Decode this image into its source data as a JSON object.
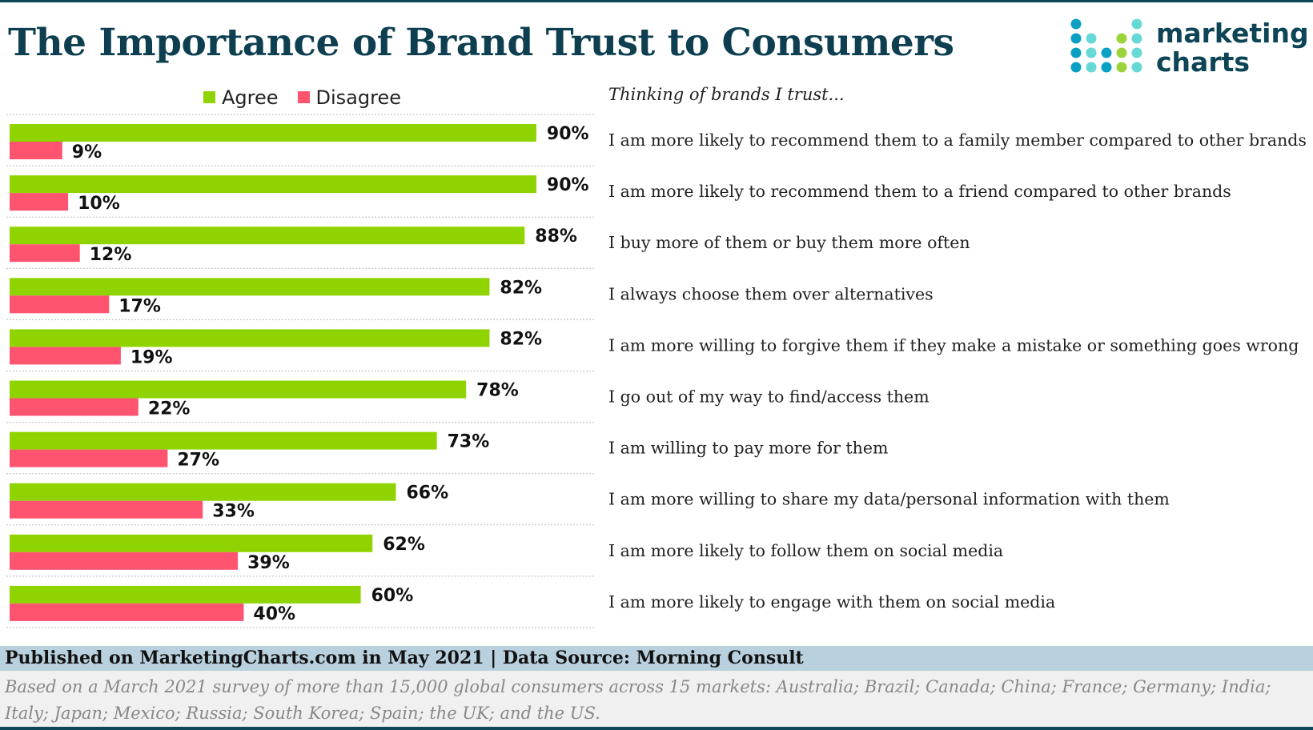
{
  "title": "The Importance of Brand Trust to Consumers",
  "logo": {
    "line1": "marketing",
    "line2": "charts"
  },
  "colors": {
    "agree": "#8fd400",
    "disagree": "#ff5470",
    "title": "#0d3f50",
    "footer_band": "#b9d1de"
  },
  "chart_data": {
    "type": "bar",
    "orientation": "horizontal",
    "subtitle": "Thinking of brands I trust...",
    "categories": [
      "I am more likely to recommend them to a family member compared to other brands",
      "I am more likely to recommend them to a friend compared to other brands",
      "I buy more of them or buy them more often",
      "I always choose them over alternatives",
      "I am more willing to forgive them if they make a mistake or something goes wrong",
      "I go out of my way to find/access them",
      "I am willing to pay more for them",
      "I am more willing to share my data/personal information with them",
      "I am more likely to follow them on social media",
      "I am more likely to engage with them on social media"
    ],
    "series": [
      {
        "name": "Agree",
        "values": [
          90,
          90,
          88,
          82,
          82,
          78,
          73,
          66,
          62,
          60
        ]
      },
      {
        "name": "Disagree",
        "values": [
          9,
          10,
          12,
          17,
          19,
          22,
          27,
          33,
          39,
          40
        ]
      }
    ],
    "unit": "%",
    "xlim": [
      0,
      100
    ],
    "legend": "top",
    "grid": false
  },
  "footer": {
    "published": "Published on MarketingCharts.com in May 2021 | Data Source: Morning Consult",
    "note_line1": "Based on a March 2021 survey of more than 15,000 global consumers across 15 markets: Australia; Brazil; Canada; China; France; Germany; India;",
    "note_line2": "Italy; Japan; Mexico; Russia; South Korea; Spain; the UK; and the US."
  }
}
